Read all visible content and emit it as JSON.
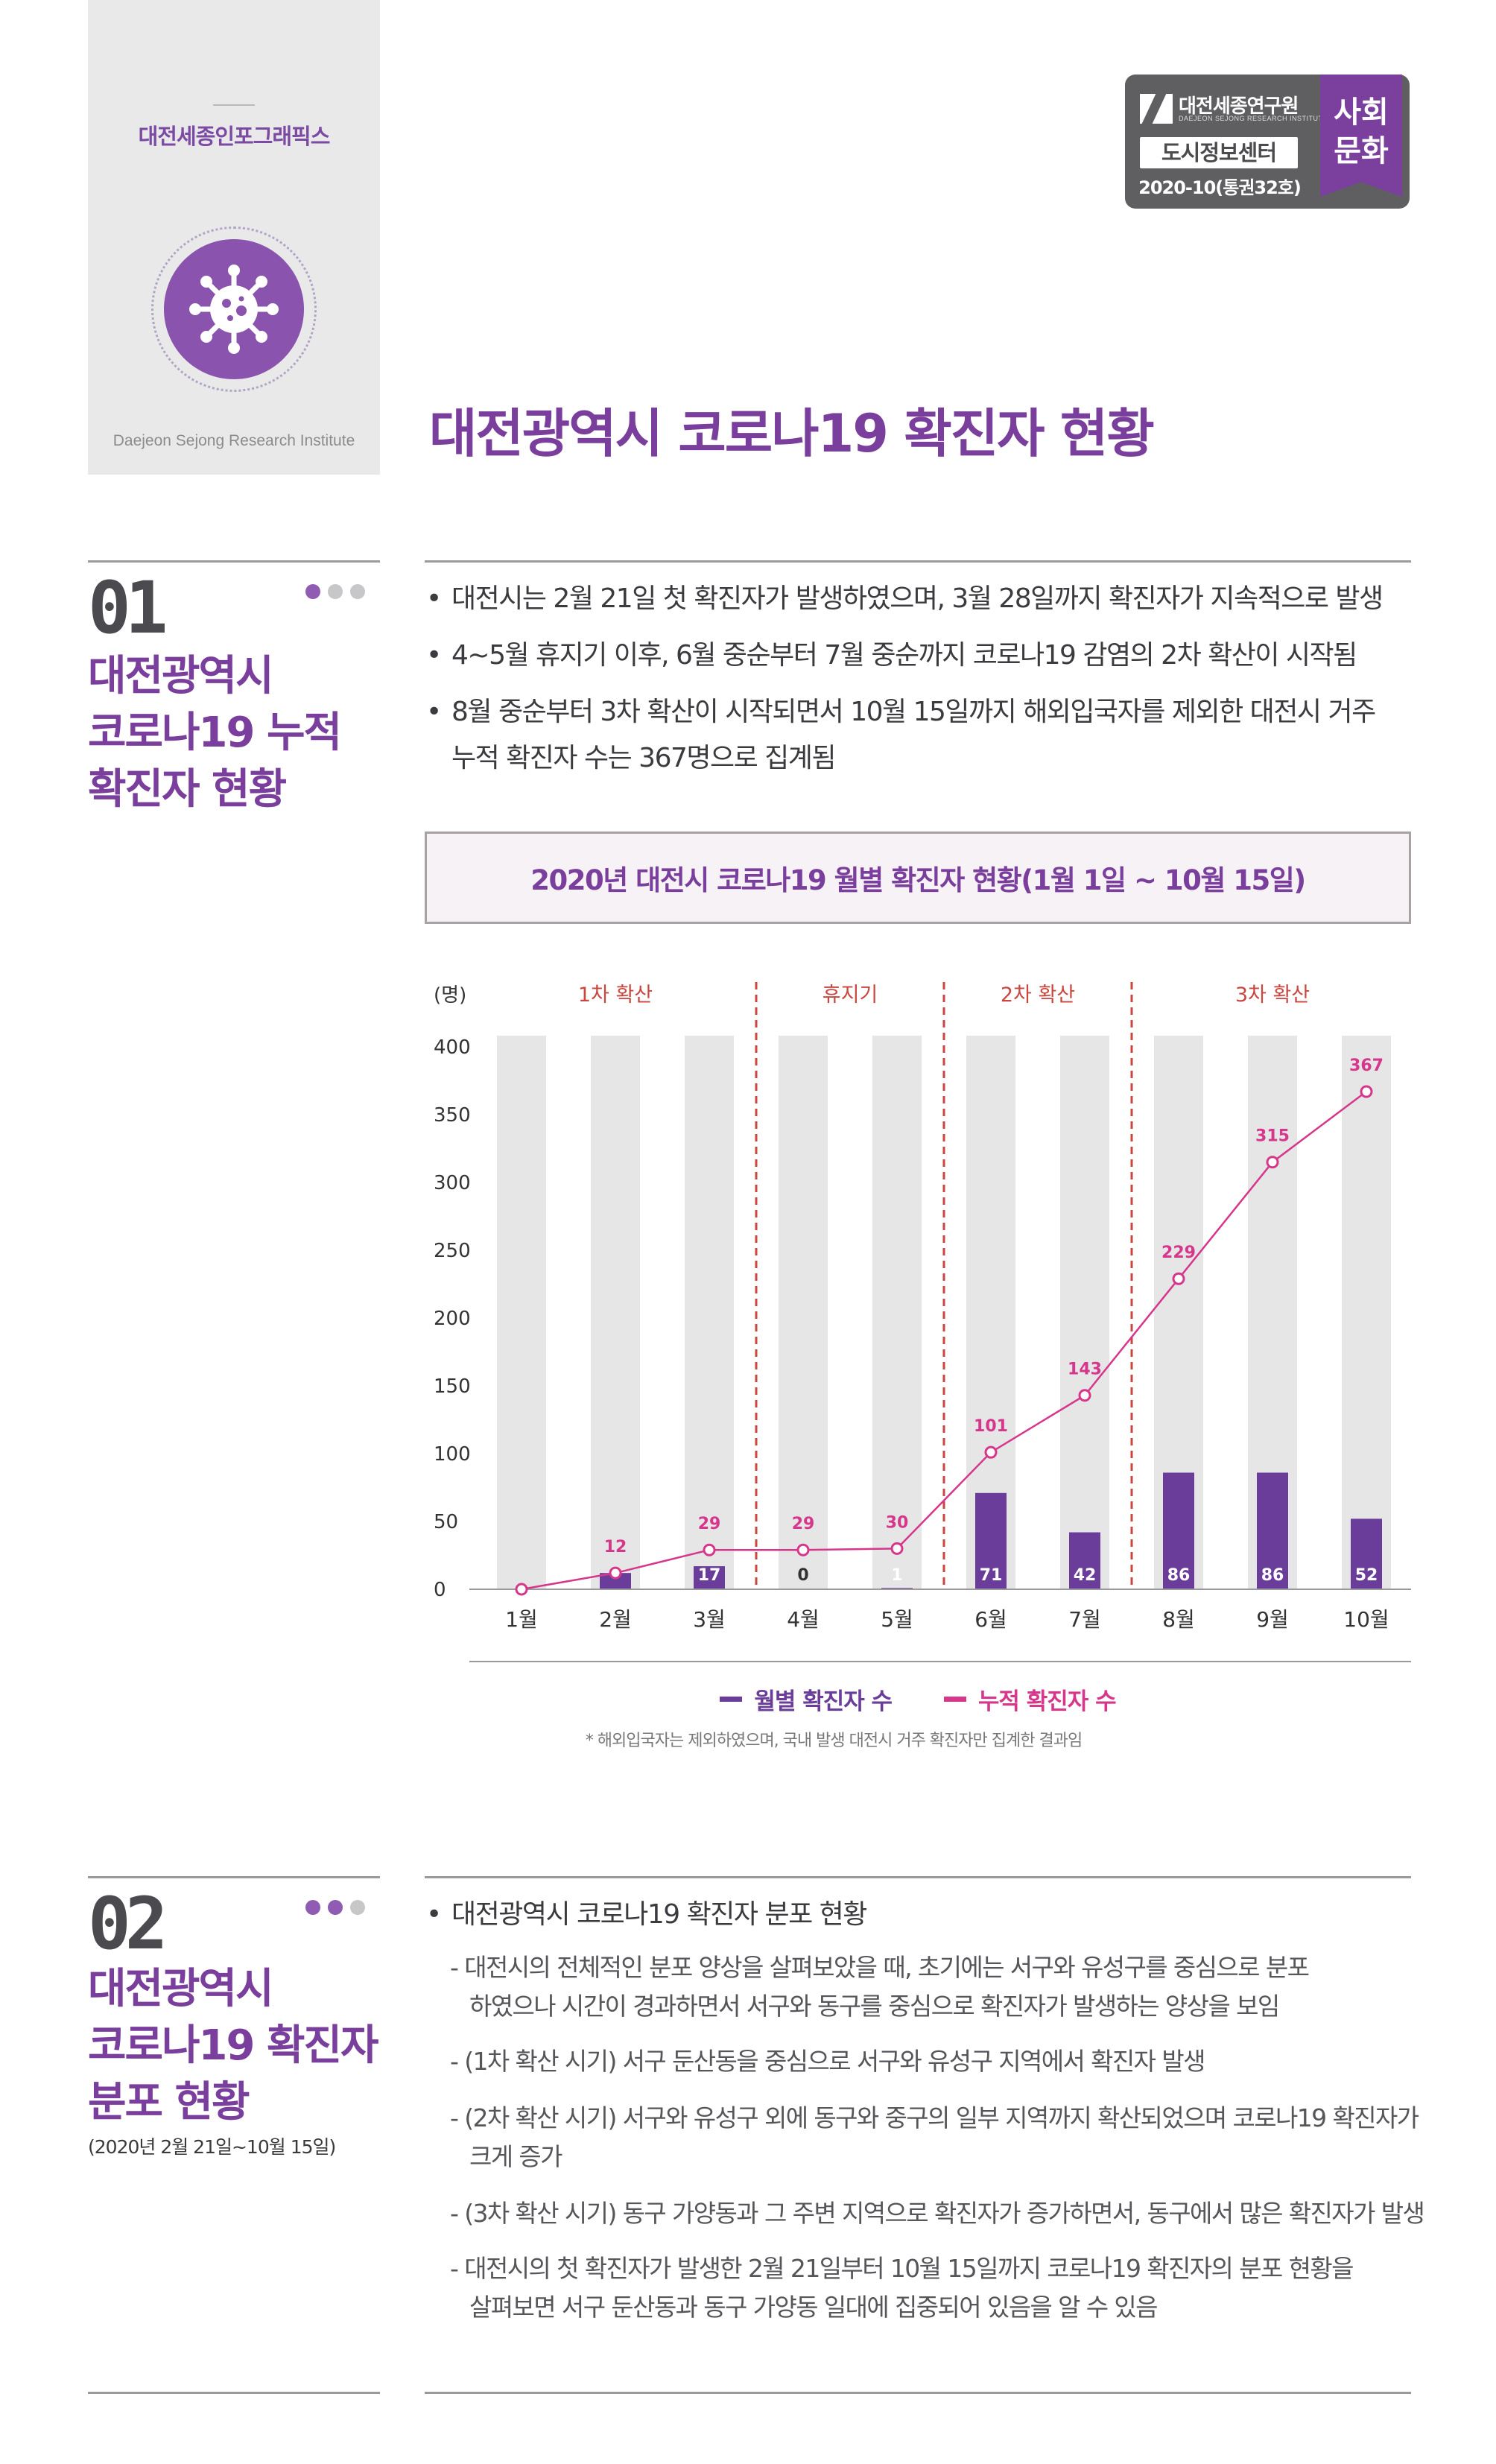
{
  "header": {
    "brand": "대전세종인포그래픽스",
    "institute": "Daejeon Sejong Research Institute",
    "main_title": "대전광역시 코로나19 확진자 현황",
    "badge": {
      "org_name": "대전세종연구원",
      "org_sub": "DAEJEON SEJONG RESEARCH INSTITUTE",
      "center": "도시정보센터",
      "issue": "2020-10(통권32호)",
      "category_line1": "사회",
      "category_line2": "문화"
    },
    "colors": {
      "accent": "#7a3e9d",
      "pink": "#d6378b",
      "gray": "#e6e6e7"
    }
  },
  "section1": {
    "num": "01",
    "title_lines": [
      "대전광역시",
      "코로나19 누적",
      "확진자 현황"
    ],
    "bullets": [
      "대전시는 2월 21일 첫 확진자가 발생하였으며, 3월 28일까지 확진자가 지속적으로 발생",
      "4~5월 휴지기 이후, 6월 중순부터 7월 중순까지 코로나19 감염의 2차 확산이 시작됨",
      "8월 중순부터 3차 확산이 시작되면서 10월 15일까지 해외입국자를 제외한 대전시 거주"
    ],
    "bullet3_cont": "누적 확진자 수는 367명으로 집계됨"
  },
  "chart_title": "2020년 대전시 코로나19 월별 확진자 현황(1월 1일 ~ 10월 15일)",
  "chart_data": {
    "type": "bar",
    "unit_label": "(명)",
    "categories": [
      "1월",
      "2월",
      "3월",
      "4월",
      "5월",
      "6월",
      "7월",
      "8월",
      "9월",
      "10월"
    ],
    "series": [
      {
        "name": "월별 확진자 수",
        "type": "bar",
        "values": [
          0,
          12,
          17,
          0,
          1,
          71,
          42,
          86,
          86,
          52
        ],
        "color": "#6a3d9a"
      },
      {
        "name": "누적 확진자 수",
        "type": "line",
        "values": [
          0,
          12,
          29,
          29,
          30,
          101,
          143,
          229,
          315,
          367
        ],
        "color": "#d6378b"
      }
    ],
    "bar_labels": [
      "",
      "",
      "17",
      "0",
      "1",
      "71",
      "42",
      "86",
      "86",
      "52"
    ],
    "line_labels": [
      "",
      "12",
      "29",
      "29",
      "30",
      "101",
      "143",
      "229",
      "315",
      "367"
    ],
    "y_ticks": [
      "0",
      "50",
      "100",
      "150",
      "200",
      "250",
      "300",
      "350",
      "400"
    ],
    "ylim": [
      0,
      400
    ],
    "phases": [
      "1차 확산",
      "휴지기",
      "2차 확산",
      "3차 확산"
    ],
    "legend_position": "bottom",
    "note": "* 해외입국자는 제외하였으며, 국내 발생 대전시 거주 확진자만 집계한 결과임"
  },
  "section2": {
    "num": "02",
    "title_lines": [
      "대전광역시",
      "코로나19 확진자",
      "분포 현황"
    ],
    "subtitle": "(2020년 2월 21일~10월 15일)",
    "bullet": "대전광역시 코로나19 확진자 분포 현황",
    "items": [
      {
        "first": "- 대전시의 전체적인 분포 양상을 살펴보았을 때, 초기에는 서구와 유성구를 중심으로 분포",
        "second": "하였으나 시간이 경과하면서 서구와 동구를 중심으로 확진자가 발생하는 양상을 보임"
      },
      {
        "first": "- (1차 확산 시기) 서구 둔산동을 중심으로 서구와 유성구 지역에서 확진자 발생",
        "second": ""
      },
      {
        "first": "- (2차 확산 시기) 서구와 유성구 외에 동구와 중구의 일부 지역까지 확산되었으며 코로나19 확진자가",
        "second": "크게 증가"
      },
      {
        "first": "- (3차 확산 시기) 동구 가양동과 그 주변 지역으로 확진자가 증가하면서, 동구에서 많은 확진자가 발생",
        "second": ""
      },
      {
        "first": "- 대전시의 첫 확진자가 발생한 2월 21일부터 10월 15일까지 코로나19 확진자의 분포 현황을",
        "second": "살펴보면 서구 둔산동과 동구 가양동 일대에 집중되어 있음을 알 수 있음"
      }
    ]
  }
}
